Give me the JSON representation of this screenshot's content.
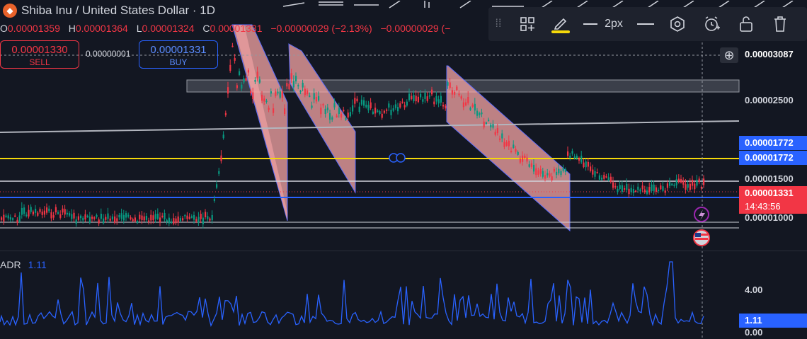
{
  "header": {
    "title": "Shiba Inu / United States Dollar · 1D",
    "logo_icon": "shib-logo-icon"
  },
  "ohlc": {
    "o_label": "O",
    "o_value": "0.00001359",
    "h_label": "H",
    "h_value": "0.00001364",
    "l_label": "L",
    "l_value": "0.00001324",
    "c_label": "C",
    "c_value": "0.00001331",
    "change": "−0.00000029 (−2.13%)",
    "change2": "−0.00000029 (−"
  },
  "trade": {
    "sell_price": "0.00001330",
    "sell_label": "SELL",
    "spread": "0.00000001",
    "buy_price": "0.00001331",
    "buy_label": "BUY"
  },
  "drawing_toolbar": {
    "width_label": "2px",
    "highlight_color": "#f5d90a"
  },
  "price_axis": {
    "crosshair_price": "0.00003087",
    "tick_25": "0.00002500",
    "label_blue_top": "0.00001772",
    "label_blue_bottom": "0.00001772",
    "tick_15": "0.00001500",
    "last_price": "0.00001331",
    "countdown": "14:43:56",
    "tick_10": "0.00001000"
  },
  "indicator": {
    "name": "ADR",
    "value": "1.11",
    "tick_4": "4.00",
    "current": "1.11",
    "tick_0": "0.00"
  },
  "colors": {
    "up": "#089981",
    "down": "#f23645",
    "accent_blue": "#2962ff",
    "yellow": "#f5d90a",
    "channel_fill": "#f7a6a6"
  },
  "chart_data": {
    "type": "candlestick",
    "symbol": "Shiba Inu / United States Dollar",
    "interval": "1D",
    "y_ticks": [
      1e-05,
      1.5e-05,
      2.5e-05
    ],
    "horizontal_lines": [
      1.772e-05,
      1.55e-05,
      1.39e-05,
      9.7e-06
    ],
    "last_close": 1.331e-05,
    "indicator": {
      "name": "ADR",
      "last": 1.11,
      "y_ticks": [
        0,
        4
      ]
    }
  }
}
